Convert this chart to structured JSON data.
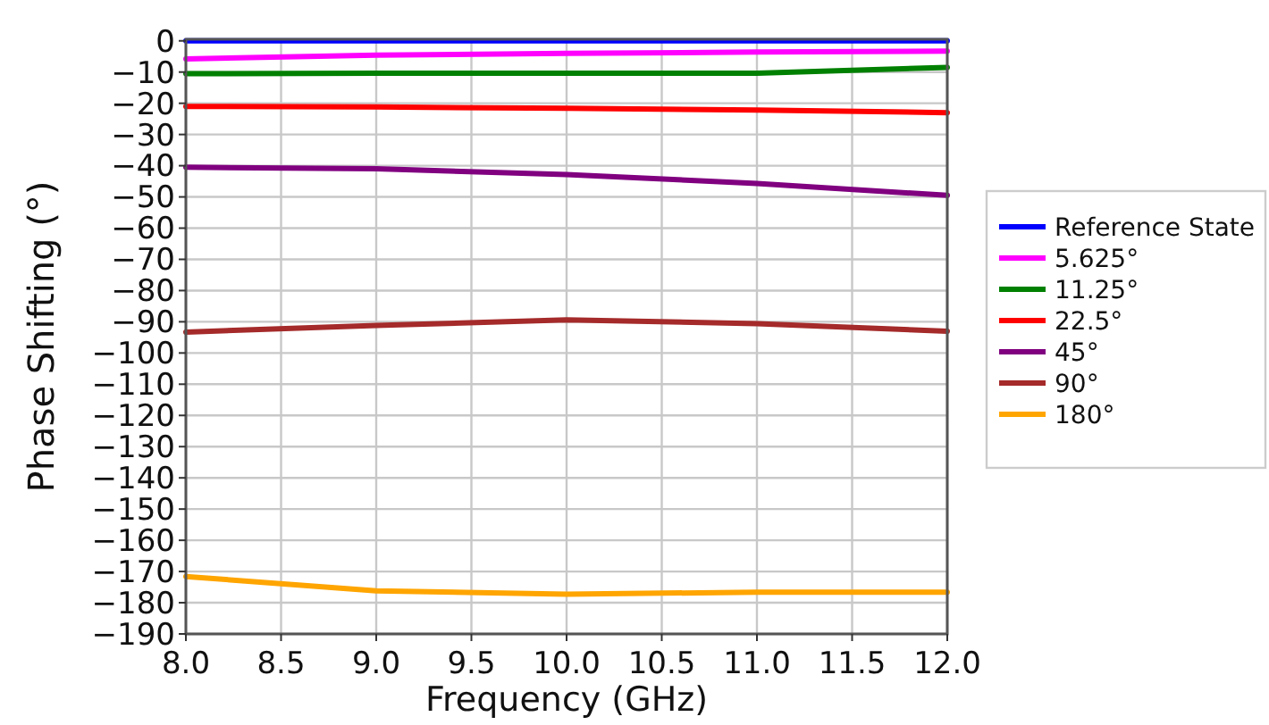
{
  "chart_data": {
    "type": "line",
    "xlabel": "Frequency (GHz)",
    "ylabel": "Phase Shifting (°)",
    "x": [
      8,
      9,
      10,
      11,
      12
    ],
    "series": [
      {
        "name": "Reference State",
        "color": "#0000ff",
        "values": [
          0,
          0,
          0,
          0,
          0
        ]
      },
      {
        "name": "5.625°",
        "color": "#ff00ff",
        "values": [
          -5.8,
          -4.6,
          -4,
          -3.6,
          -3.3
        ]
      },
      {
        "name": "11.25°",
        "color": "#008000",
        "values": [
          -10.5,
          -10.4,
          -10.4,
          -10.4,
          -8.5
        ]
      },
      {
        "name": "22.5°",
        "color": "#ff0000",
        "values": [
          -21,
          -21.2,
          -21.6,
          -22.2,
          -23
        ]
      },
      {
        "name": "45°",
        "color": "#800080",
        "values": [
          -40.5,
          -41,
          -42.8,
          -45.7,
          -49.5
        ]
      },
      {
        "name": "90°",
        "color": "#a52a2a",
        "values": [
          -93.3,
          -91.2,
          -89.4,
          -90.6,
          -93
        ]
      },
      {
        "name": "180°",
        "color": "#ffa500",
        "values": [
          -171.6,
          -176.2,
          -177.3,
          -176.6,
          -176.6
        ]
      }
    ],
    "xlim": [
      8,
      12
    ],
    "xticks": [
      {
        "value": 8,
        "label": "8.0"
      },
      {
        "value": 8.5,
        "label": "8.5"
      },
      {
        "value": 9,
        "label": "9.0"
      },
      {
        "value": 9.5,
        "label": "9.5"
      },
      {
        "value": 10,
        "label": "10.0"
      },
      {
        "value": 10.5,
        "label": "10.5"
      },
      {
        "value": 11,
        "label": "11.0"
      },
      {
        "value": 11.5,
        "label": "11.5"
      },
      {
        "value": 12,
        "label": "12.0"
      }
    ],
    "ylim": [
      -190,
      0.5
    ],
    "yticks": [
      0,
      -10,
      -20,
      -30,
      -40,
      -50,
      -60,
      -70,
      -80,
      -90,
      -100,
      -110,
      -120,
      -130,
      -140,
      -150,
      -160,
      -170,
      -180,
      -190
    ],
    "grid": true,
    "legend": "right",
    "marker": "none",
    "line_style": "solid"
  }
}
